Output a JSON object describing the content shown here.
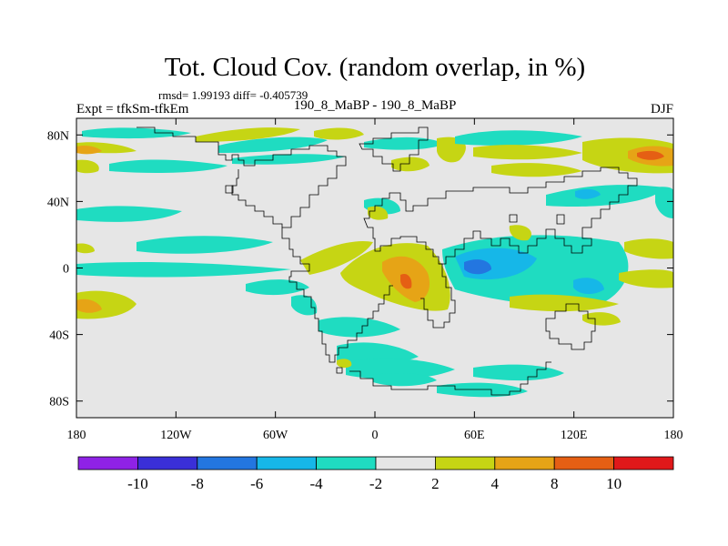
{
  "chart_data": {
    "type": "heatmap",
    "title": "Tot. Cloud Cov. (random overlap, in %)",
    "stats_line": "rmsd= 1.99193 diff= -0.405739",
    "left_label": "Expt = tfkSm-tfkEm",
    "center_label": "190_8_MaBP - 190_8_MaBP",
    "right_label": "DJF",
    "x_ticks": [
      "180",
      "120W",
      "60W",
      "0",
      "60E",
      "120E",
      "180"
    ],
    "x_tick_values": [
      -180,
      -120,
      -60,
      0,
      60,
      120,
      180
    ],
    "y_ticks": [
      "80N",
      "40N",
      "0",
      "40S",
      "80S"
    ],
    "y_tick_values": [
      80,
      40,
      0,
      -40,
      -80
    ],
    "xlim": [
      -180,
      180
    ],
    "ylim": [
      -90,
      90
    ],
    "colorbar": {
      "labels": [
        "-10",
        "-8",
        "-6",
        "-4",
        "-2",
        "2",
        "4",
        "8",
        "10"
      ],
      "colors": [
        "#8f22e6",
        "#3a2fd8",
        "#2376e0",
        "#16b7e8",
        "#1fdcc1",
        "#e6e6e6",
        "#c6d514",
        "#e6a416",
        "#e55f14",
        "#e0181a"
      ]
    },
    "background_color": "#e6e6e6",
    "coastline_color": "#000000"
  }
}
